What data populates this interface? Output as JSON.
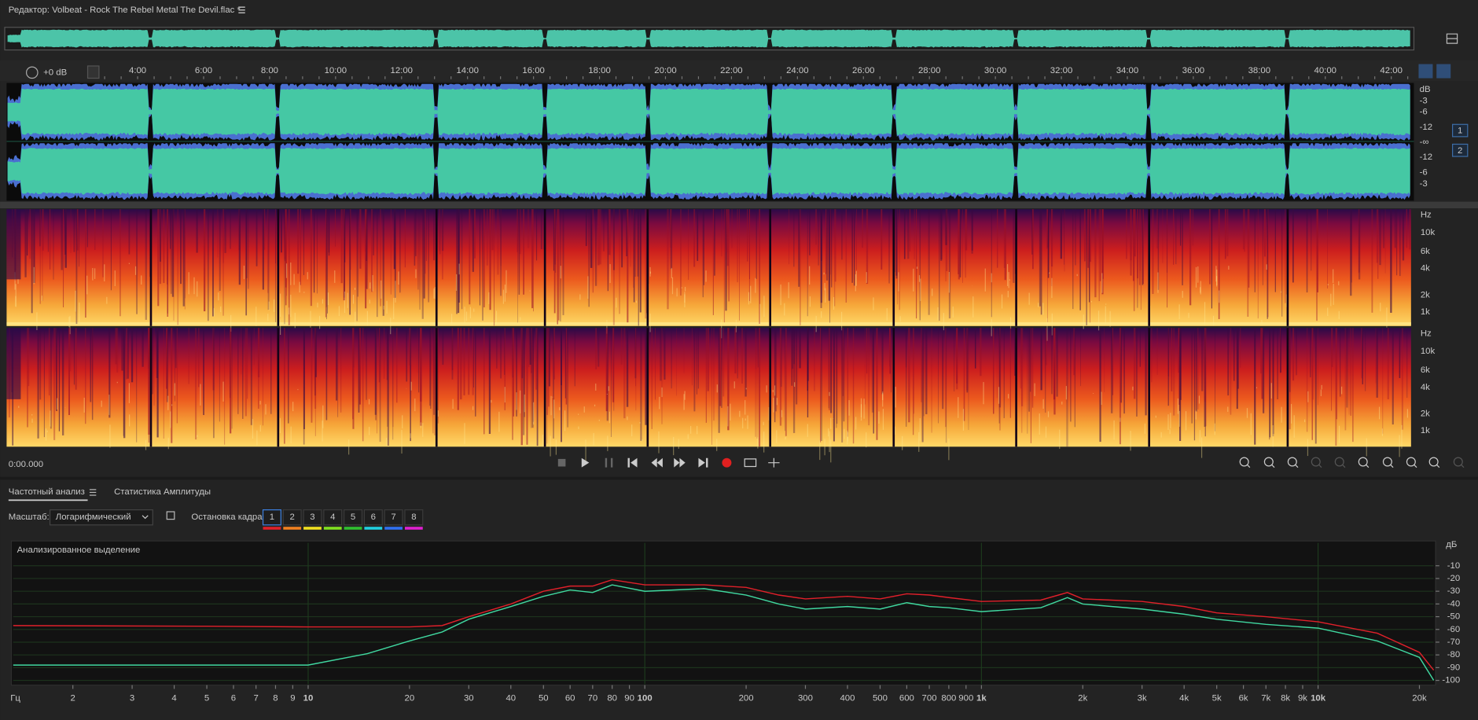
{
  "header": {
    "title": "Редактор: Volbeat - Rock The Rebel Metal The Devil.flac *"
  },
  "editor": {
    "volume": "+0 dB",
    "ruler": [
      "4:00",
      "6:00",
      "8:00",
      "10:00",
      "12:00",
      "14:00",
      "16:00",
      "18:00",
      "20:00",
      "22:00",
      "24:00",
      "26:00",
      "28:00",
      "30:00",
      "32:00",
      "34:00",
      "36:00",
      "38:00",
      "40:00",
      "42:00"
    ],
    "waveform_scale": [
      "dB",
      "-3",
      "-6",
      "-12",
      "-∞",
      "-12",
      "-6",
      "-3"
    ],
    "channels": [
      "1",
      "2"
    ],
    "spectrogram_scale": [
      "Hz",
      "10k",
      "6k",
      "4k",
      "2k",
      "1k"
    ],
    "time": "0:00.000"
  },
  "analysis": {
    "tabs": [
      "Частотный анализ",
      "Статистика Амплитуды"
    ],
    "scale_label": "Масштаб:",
    "scale_value": "Логарифмический",
    "freeze_label": "Остановка кадра:",
    "freeze_buttons": [
      "1",
      "2",
      "3",
      "4",
      "5",
      "6",
      "7",
      "8"
    ],
    "placeholder": "Анализированное выделение"
  },
  "chart_data": {
    "type": "line",
    "x_label": "Гц",
    "y_label": "дБ",
    "x_scale": "log",
    "grid": true,
    "xlim": [
      1.33,
      22050
    ],
    "ylim": [
      -103,
      8
    ],
    "xticks": [
      2,
      3,
      4,
      5,
      6,
      7,
      8,
      9,
      10,
      20,
      30,
      40,
      50,
      60,
      70,
      80,
      90,
      100,
      200,
      300,
      400,
      500,
      600,
      700,
      800,
      900,
      {
        "value": 1000,
        "label": "1k"
      },
      {
        "value": 2000,
        "label": "2k"
      },
      {
        "value": 3000,
        "label": "3k"
      },
      {
        "value": 4000,
        "label": "4k"
      },
      {
        "value": 5000,
        "label": "5k"
      },
      {
        "value": 6000,
        "label": "6k"
      },
      {
        "value": 7000,
        "label": "7k"
      },
      {
        "value": 8000,
        "label": "8k"
      },
      {
        "value": 9000,
        "label": "9k"
      },
      {
        "value": 10000,
        "label": "10k"
      },
      {
        "value": 20000,
        "label": "20k"
      }
    ],
    "yticks": [
      -10,
      -20,
      -30,
      -40,
      -50,
      -60,
      -70,
      -80,
      -90,
      -100
    ],
    "x": [
      1.33,
      5,
      10,
      15,
      20,
      25,
      30,
      40,
      50,
      60,
      70,
      80,
      100,
      150,
      200,
      250,
      300,
      400,
      500,
      600,
      700,
      800,
      1000,
      1500,
      1800,
      2000,
      3000,
      4000,
      5000,
      7000,
      10000,
      15000,
      20000,
      22050
    ],
    "series": [
      {
        "color": "#e0202a",
        "values": [
          -57,
          -57.5,
          -58,
          -58,
          -58,
          -57,
          -50,
          -40,
          -30,
          -26,
          -26,
          -21,
          -25,
          -25,
          -27,
          -33,
          -36,
          -34,
          -36,
          -32,
          -33,
          -35,
          -38,
          -37,
          -31,
          -36,
          -38,
          -42,
          -47,
          -50,
          -54,
          -63,
          -78,
          -92
        ]
      },
      {
        "color": "#40d8a0",
        "values": [
          -88,
          -88,
          -88,
          -79,
          -69,
          -62,
          -52,
          -42,
          -34,
          -29,
          -31,
          -25,
          -30,
          -28,
          -33,
          -40,
          -44,
          -42,
          -44,
          -39,
          -42,
          -43,
          -46,
          -43,
          -35,
          -40,
          -44,
          -48,
          -52,
          -56,
          -59,
          -69,
          -82,
          -100
        ]
      }
    ]
  }
}
